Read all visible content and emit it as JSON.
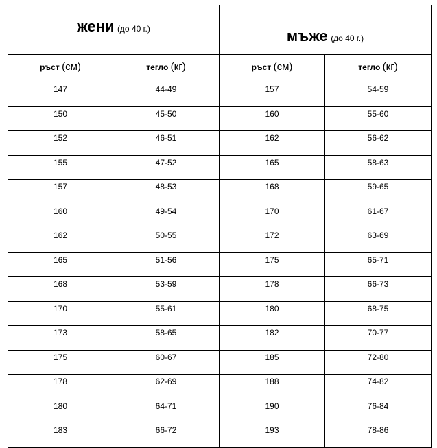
{
  "women": {
    "title": "жени",
    "note": "(до 40 г.)"
  },
  "men": {
    "title": "мъже",
    "note": "(до 40 г.)"
  },
  "columns": {
    "height": "ръст",
    "height_unit": "(см)",
    "weight": "тегло",
    "weight_unit": "(кг)"
  },
  "rows": [
    [
      "147",
      "44-49",
      "157",
      "54-59"
    ],
    [
      "150",
      "45-50",
      "160",
      "55-60"
    ],
    [
      "152",
      "46-51",
      "162",
      "56-62"
    ],
    [
      "155",
      "47-52",
      "165",
      "58-63"
    ],
    [
      "157",
      "48-53",
      "168",
      "59-65"
    ],
    [
      "160",
      "49-54",
      "170",
      "61-67"
    ],
    [
      "162",
      "50-55",
      "172",
      "63-69"
    ],
    [
      "165",
      "51-56",
      "175",
      "65-71"
    ],
    [
      "168",
      "53-59",
      "178",
      "66-73"
    ],
    [
      "170",
      "55-61",
      "180",
      "68-75"
    ],
    [
      "173",
      "58-65",
      "182",
      "70-77"
    ],
    [
      "175",
      "60-67",
      "185",
      "72-80"
    ],
    [
      "178",
      "62-69",
      "188",
      "74-82"
    ],
    [
      "180",
      "64-71",
      "190",
      "76-84"
    ],
    [
      "183",
      "66-72",
      "193",
      "78-86"
    ]
  ]
}
